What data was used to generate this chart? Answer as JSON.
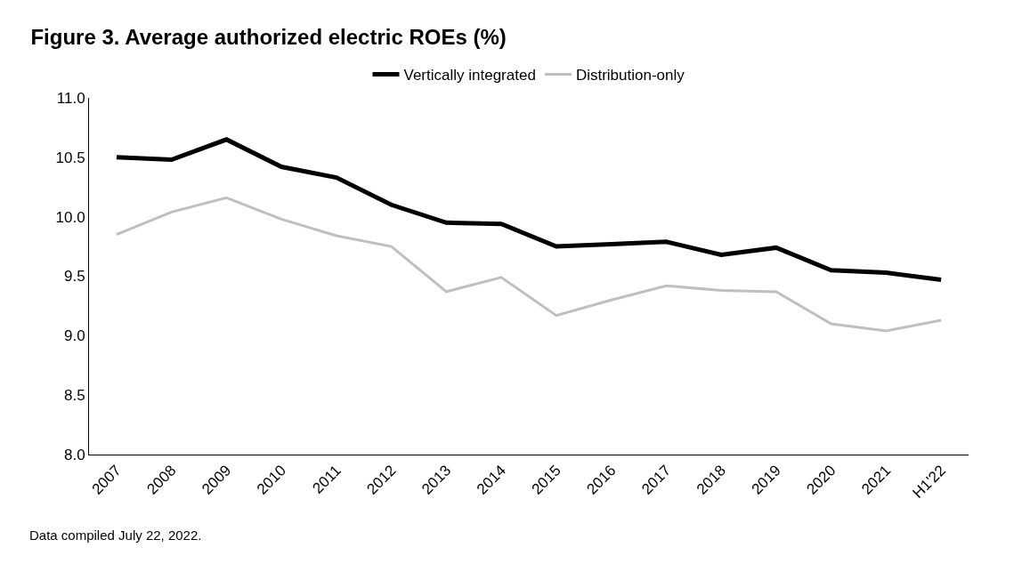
{
  "chart_data": {
    "type": "line",
    "title": "Figure 3. Average authorized electric ROEs (%)",
    "categories": [
      "2007",
      "2008",
      "2009",
      "2010",
      "2011",
      "2012",
      "2013",
      "2014",
      "2015",
      "2016",
      "2017",
      "2018",
      "2019",
      "2020",
      "2021",
      "H1'22"
    ],
    "series": [
      {
        "name": "Vertically integrated",
        "color": "#000000",
        "values": [
          10.5,
          10.48,
          10.65,
          10.42,
          10.33,
          10.1,
          9.95,
          9.94,
          9.75,
          9.77,
          9.79,
          9.68,
          9.74,
          9.55,
          9.53,
          9.47
        ]
      },
      {
        "name": "Distribution-only",
        "color": "#bfbfbf",
        "values": [
          9.85,
          10.04,
          10.16,
          9.98,
          9.84,
          9.75,
          9.37,
          9.49,
          9.17,
          9.3,
          9.42,
          9.38,
          9.37,
          9.1,
          9.04,
          9.13
        ]
      }
    ],
    "ylim": [
      8.0,
      11.0
    ],
    "yticks": [
      {
        "value": 8.0,
        "label": "8.0"
      },
      {
        "value": 8.5,
        "label": "8.5"
      },
      {
        "value": 9.0,
        "label": "9.0"
      },
      {
        "value": 9.5,
        "label": "9.5"
      },
      {
        "value": 10.0,
        "label": "10.0"
      },
      {
        "value": 10.5,
        "label": "10.5"
      },
      {
        "value": 11.0,
        "label": "11.0"
      }
    ],
    "grid": false,
    "legend": "top",
    "marker": "none",
    "line_style": "solid",
    "annotations": [
      "Data compiled July 22, 2022."
    ]
  }
}
